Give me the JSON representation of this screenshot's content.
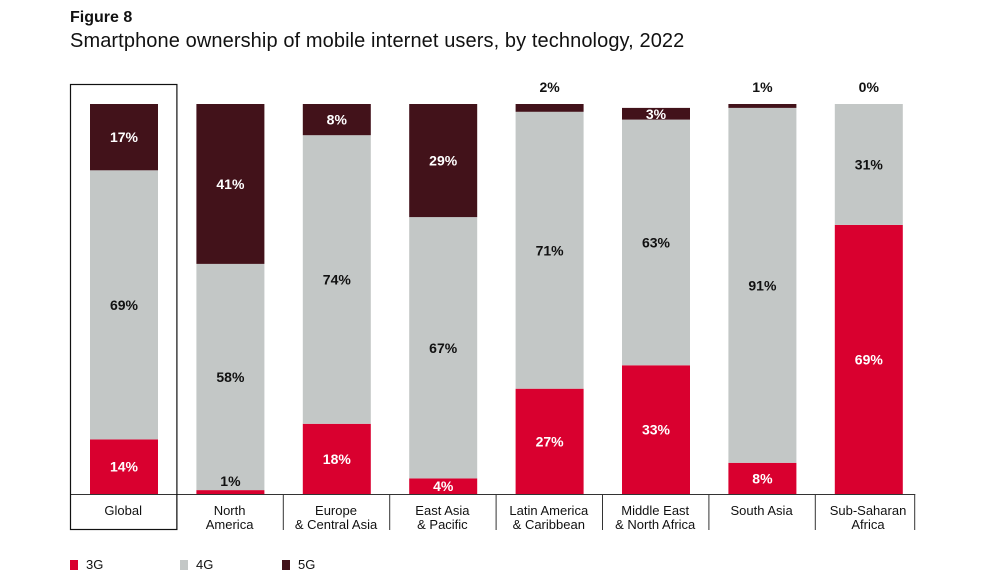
{
  "header": {
    "figure_label": "Figure 8",
    "title": "Smartphone ownership of mobile internet users, by technology, 2022"
  },
  "colors": {
    "3G": "#d9002f",
    "4G": "#c3c7c6",
    "5G": "#42121a",
    "highlight_border": "#111111",
    "axis": "#333333"
  },
  "chart_data": {
    "type": "bar",
    "stacked": true,
    "orientation": "vertical",
    "ylim": [
      0,
      100
    ],
    "grid": false,
    "legend_position": "bottom-left",
    "highlighted_category": "Global",
    "categories": [
      [
        "Global"
      ],
      [
        "North",
        "America"
      ],
      [
        "Europe",
        "& Central Asia"
      ],
      [
        "East Asia",
        "& Pacific"
      ],
      [
        "Latin America",
        "& Caribbean"
      ],
      [
        "Middle East",
        "& North Africa"
      ],
      [
        "South Asia"
      ],
      [
        "Sub-Saharan",
        "Africa"
      ]
    ],
    "series": [
      {
        "name": "3G",
        "values": [
          14,
          1,
          18,
          4,
          27,
          33,
          8,
          69
        ]
      },
      {
        "name": "4G",
        "values": [
          69,
          58,
          74,
          67,
          71,
          63,
          91,
          31
        ]
      },
      {
        "name": "5G",
        "values": [
          17,
          41,
          8,
          29,
          2,
          3,
          1,
          0
        ]
      }
    ]
  }
}
